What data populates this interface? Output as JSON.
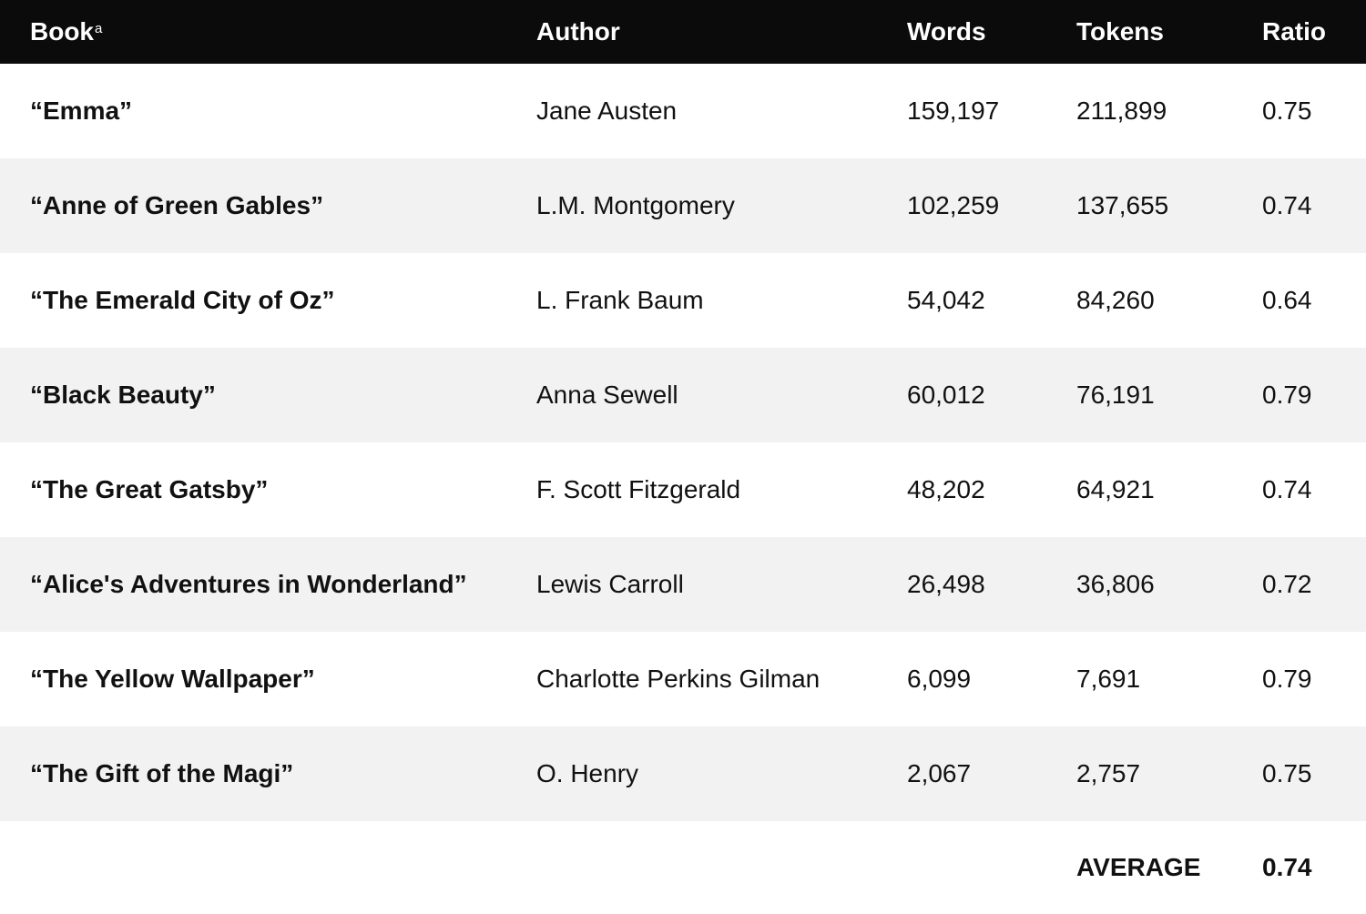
{
  "table": {
    "headers": {
      "book": "Book",
      "book_footnote": "a",
      "author": "Author",
      "words": "Words",
      "tokens": "Tokens",
      "ratio": "Ratio"
    },
    "rows": [
      {
        "book": "“Emma”",
        "author": "Jane Austen",
        "words": "159,197",
        "tokens": "211,899",
        "ratio": "0.75"
      },
      {
        "book": "“Anne of Green Gables”",
        "author": "L.M. Montgomery",
        "words": "102,259",
        "tokens": "137,655",
        "ratio": "0.74"
      },
      {
        "book": "“The Emerald City of Oz”",
        "author": "L. Frank Baum",
        "words": "54,042",
        "tokens": "84,260",
        "ratio": "0.64"
      },
      {
        "book": "“Black Beauty”",
        "author": "Anna Sewell",
        "words": "60,012",
        "tokens": "76,191",
        "ratio": "0.79"
      },
      {
        "book": "“The Great Gatsby”",
        "author": "F. Scott Fitzgerald",
        "words": "48,202",
        "tokens": "64,921",
        "ratio": "0.74"
      },
      {
        "book": "“Alice's Adventures in Wonderland”",
        "author": "Lewis Carroll",
        "words": "26,498",
        "tokens": "36,806",
        "ratio": "0.72"
      },
      {
        "book": "“The Yellow Wallpaper”",
        "author": "Charlotte Perkins Gilman",
        "words": "6,099",
        "tokens": "7,691",
        "ratio": "0.79"
      },
      {
        "book": "“The Gift of the Magi”",
        "author": "O. Henry",
        "words": "2,067",
        "tokens": "2,757",
        "ratio": "0.75"
      }
    ],
    "average": {
      "label": "AVERAGE",
      "ratio": "0.74"
    }
  },
  "colors": {
    "header_bg": "#0b0b0b",
    "header_text": "#ffffff",
    "alt_row_bg": "#f2f2f2",
    "text": "#111111"
  }
}
